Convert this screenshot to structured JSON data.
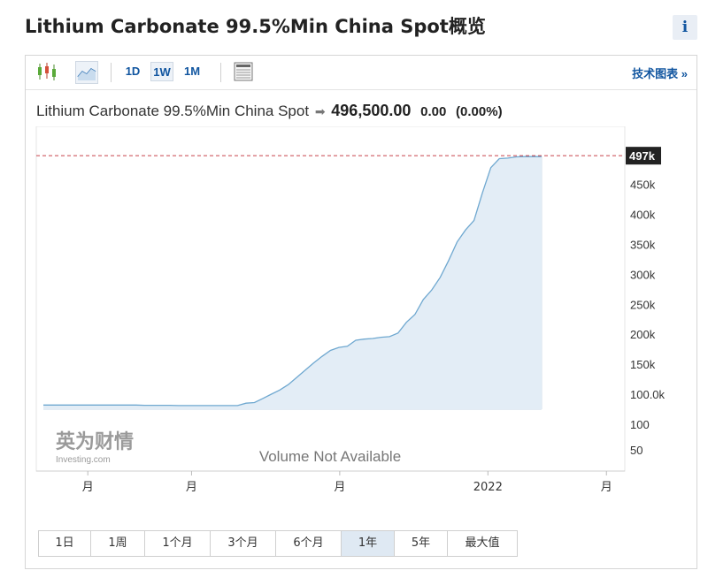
{
  "page": {
    "title": "Lithium Carbonate 99.5%Min China Spot概览",
    "info_label": "i"
  },
  "toolbar": {
    "intervals": [
      "1D",
      "1W",
      "1M"
    ],
    "active_interval": "1W",
    "tech_link": "技术图表 »"
  },
  "quote": {
    "name": "Lithium Carbonate 99.5%Min China Spot",
    "price": "496,500.00",
    "change": "0.00",
    "change_pct": "(0.00%)"
  },
  "ranges": [
    "1日",
    "1周",
    "1个月",
    "3个月",
    "6个月",
    "1年",
    "5年",
    "最大值"
  ],
  "active_range": "1年",
  "watermark": {
    "brand": "英为财情",
    "sub": "Investing.com"
  },
  "colors": {
    "line": "#6fa8d0",
    "fill": "#e3edf6",
    "last_price_line": "#c8414b",
    "last_price_badge": "#222222",
    "accent": "#1256a0"
  },
  "chart_data": {
    "type": "area",
    "price_label": "497k",
    "volume_note": "Volume Not Available",
    "ylim": [
      75000,
      510000
    ],
    "y_ticks": [
      "450k",
      "400k",
      "350k",
      "300k",
      "250k",
      "200k",
      "150k",
      "100.0k"
    ],
    "y_tick_values": [
      450000,
      400000,
      350000,
      300000,
      250000,
      200000,
      150000,
      100000
    ],
    "volume_ticks": [
      "100",
      "50"
    ],
    "x_tick_labels": [
      "月",
      "月",
      "月",
      "2022",
      "月"
    ],
    "x_tick_index": [
      6,
      20,
      40,
      60,
      76
    ],
    "series": [
      {
        "values": [
          82000,
          82000,
          82000,
          82000,
          82000,
          82000,
          82000,
          82000,
          82000,
          82000,
          82000,
          82000,
          81500,
          81500,
          81500,
          81500,
          81000,
          81000,
          81000,
          81000,
          81000,
          81000,
          81000,
          81000,
          85000,
          86000,
          93000,
          100000,
          107000,
          116000,
          128000,
          140000,
          152000,
          163000,
          173000,
          178000,
          180000,
          190000,
          192000,
          193000,
          195000,
          196000,
          202000,
          220000,
          233000,
          258000,
          274000,
          295000,
          323000,
          354000,
          374000,
          390000,
          436000,
          478000,
          493000,
          494000,
          496000,
          496500,
          496500,
          496500
        ]
      }
    ],
    "series_x_index_start": 0,
    "series_x_index_end": 78
  }
}
